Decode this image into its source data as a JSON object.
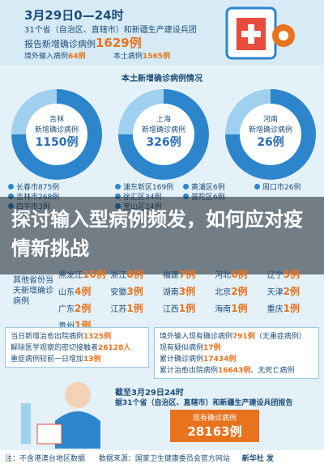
{
  "header": {
    "date": "3月29日0—24时",
    "scope": "31个省（自治区、直辖市）和新疆生产建设兵团",
    "total": {
      "label": "报告新增确诊病例",
      "value": "1629例"
    },
    "imported": {
      "label": "境外输入病例",
      "value": "64例"
    },
    "local": {
      "label": "本土病例",
      "value": "1565例"
    }
  },
  "local_section": {
    "title": "本土新增确诊病例情况",
    "regions": [
      {
        "name": "吉林",
        "label": "新增确诊病例",
        "value": "1150例",
        "items": [
          "长春市875例",
          "吉林市268例",
          "四平市3例"
        ]
      },
      {
        "name": "上海",
        "label": "新增确诊病例",
        "value": "326例",
        "items": [
          "浦东新区169例",
          "徐汇区34例",
          "宝山区24例"
        ]
      },
      {
        "name": "河南",
        "label": "新增确诊病例",
        "value": "26例",
        "items": [
          "周口市26例"
        ]
      }
    ],
    "extra_items": [
      "黄浦区6例",
      "普陀区6例"
    ]
  },
  "overlay": {
    "title": "探讨输入型病例频发，如何应对疫情新挑战"
  },
  "other_provinces": {
    "title": "其他省份当天新增确诊病例",
    "items": [
      {
        "name": "黑龙江",
        "value": "16例"
      },
      {
        "name": "浙江",
        "value": "8例"
      },
      {
        "name": "福建",
        "value": "7例"
      },
      {
        "name": "河北",
        "value": "6例"
      },
      {
        "name": "辽宁",
        "value": "5例"
      },
      {
        "name": "山东",
        "value": "4例"
      },
      {
        "name": "安徽",
        "value": "3例"
      },
      {
        "name": "湖南",
        "value": "3例"
      },
      {
        "name": "北京",
        "value": "2例"
      },
      {
        "name": "天津",
        "value": "2例"
      },
      {
        "name": "广东",
        "value": "2例"
      },
      {
        "name": "江苏",
        "value": "1例"
      },
      {
        "name": "江西",
        "value": "1例"
      },
      {
        "name": "海南",
        "value": "1例"
      },
      {
        "name": "重庆",
        "value": "1例"
      },
      {
        "name": "贵州",
        "value": "1例"
      }
    ]
  },
  "stats_left": [
    {
      "label": "当日新增治愈出院病例",
      "value": "1325例"
    },
    {
      "label": "解除医学观察的密切接触者",
      "value": "26128人"
    },
    {
      "label": "重症病例较前一日增加",
      "value": "13例"
    }
  ],
  "stats_right": [
    {
      "label": "境外输入现有确诊病例",
      "value": "791例",
      "note": "（无重症病例）"
    },
    {
      "label": "现有疑似病例",
      "value": "17例"
    },
    {
      "label": "累计确诊病例",
      "value": "17434例"
    },
    {
      "label": "累计治愈出院病例",
      "value": "16643例",
      "note": "、无死亡病例"
    }
  ],
  "summary": {
    "date": "截至3月29日24时",
    "scope": "据31个省（自治区、直辖市）和新疆生产建设兵团报告",
    "label": "现有确诊病例",
    "value": "28163例"
  },
  "footer": {
    "note": "注：不含港澳台地区数据",
    "source": "数据来源：国家卫生健康委员会官方网站",
    "credit": "新华社 发"
  }
}
